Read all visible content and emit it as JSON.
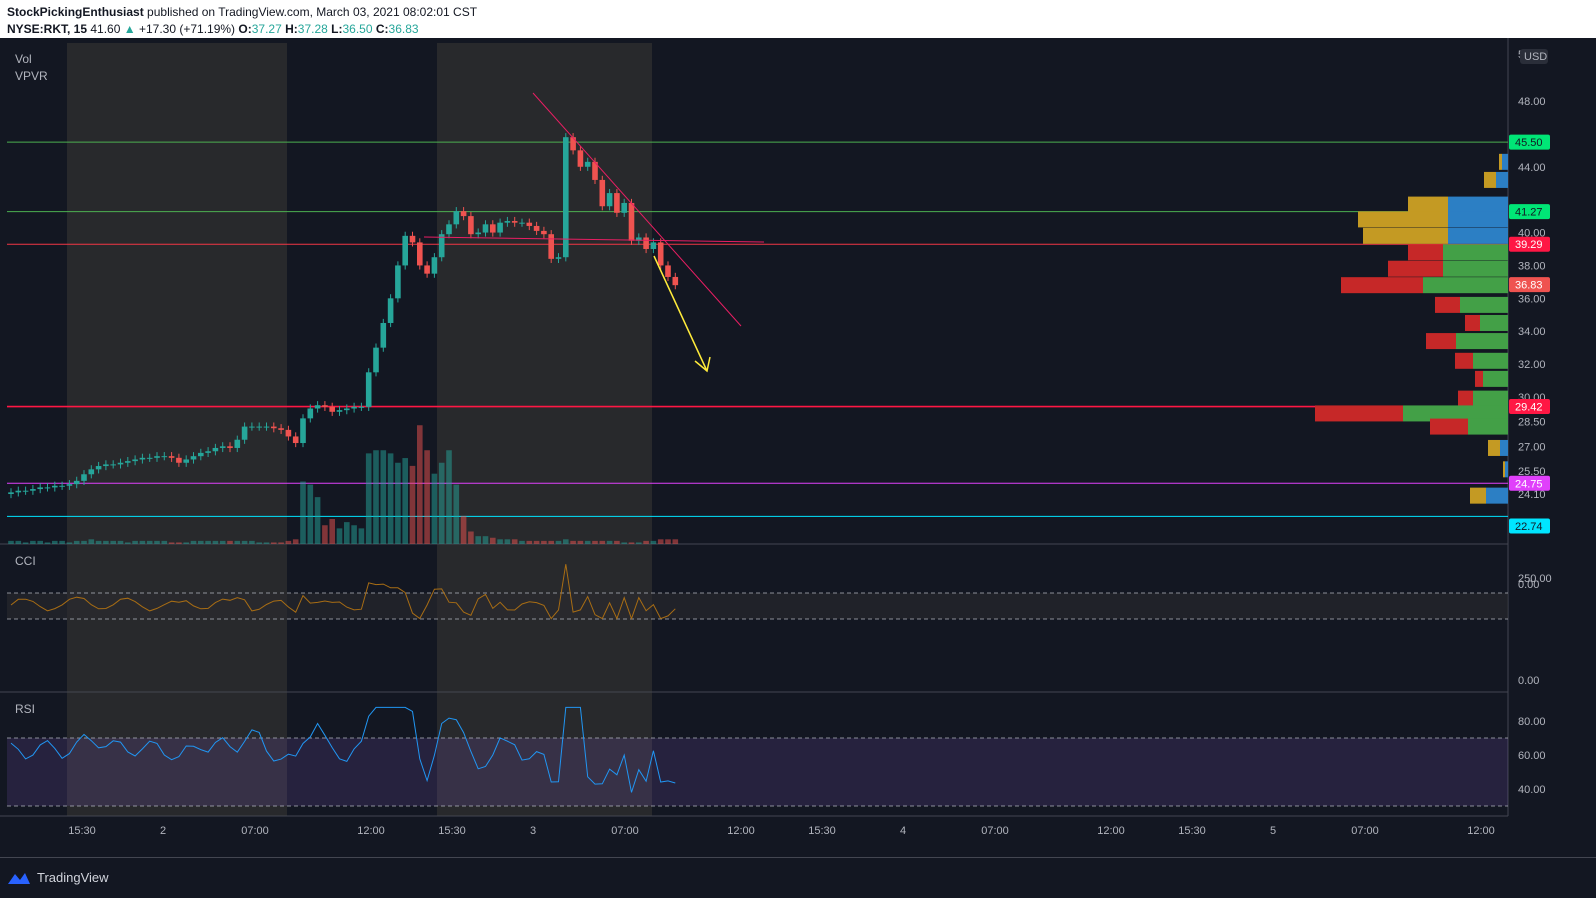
{
  "header": {
    "publisher": "StockPickingEnthusiast",
    "published_text": "published on TradingView.com, March 03, 2021 08:02:01 CST",
    "symbol": "NYSE:RKT, 15",
    "last": "41.60",
    "change": "+17.30 (+71.19%)",
    "o_label": "O:",
    "o_value": "37.27",
    "h_label": "H:",
    "h_value": "37.28",
    "l_label": "L:",
    "l_value": "36.50",
    "c_label": "C:",
    "c_value": "36.83"
  },
  "panels": {
    "main_labels": [
      "Vol",
      "VPVR"
    ],
    "cci_label": "CCI",
    "rsi_label": "RSI",
    "currency": "USD"
  },
  "price_axis": {
    "top_tick": "5",
    "ticks": [
      "48.00",
      "44.00",
      "40.00",
      "38.00",
      "36.00",
      "34.00",
      "32.00",
      "30.00",
      "28.50",
      "27.00",
      "25.50",
      "24.10"
    ]
  },
  "price_tags": [
    {
      "value": "45.50",
      "color": "#00e676",
      "text_color": "#131722"
    },
    {
      "value": "41.27",
      "color": "#00e676",
      "text_color": "#131722"
    },
    {
      "value": "39.29",
      "color": "#ff1744",
      "text_color": "#ffffff"
    },
    {
      "value": "36.83",
      "color": "#ef5350",
      "text_color": "#ffffff"
    },
    {
      "value": "29.42",
      "color": "#ff1744",
      "text_color": "#ffffff"
    },
    {
      "value": "24.75",
      "color": "#e040fb",
      "text_color": "#ffffff"
    },
    {
      "value": "22.74",
      "color": "#00e5ff",
      "text_color": "#131722"
    }
  ],
  "cci_axis": [
    "250.00",
    "0.00",
    "0.00"
  ],
  "rsi_axis": [
    "80.00",
    "60.00",
    "40.00"
  ],
  "time_axis": [
    "15:30",
    "2",
    "07:00",
    "12:00",
    "15:30",
    "3",
    "07:00",
    "12:00",
    "15:30",
    "4",
    "07:00",
    "12:00",
    "15:30",
    "5",
    "07:00",
    "12:00"
  ],
  "footer": {
    "brand": "TradingView"
  },
  "colors": {
    "up": "#26a69a",
    "down": "#ef5350",
    "session": "#3a3834",
    "background": "#131722"
  },
  "chart_data": {
    "type": "candlestick",
    "closes": [
      24.2,
      24.3,
      24.3,
      24.4,
      24.5,
      24.5,
      24.6,
      24.6,
      24.7,
      24.9,
      25.3,
      25.6,
      25.8,
      25.9,
      25.9,
      26.0,
      26.1,
      26.2,
      26.3,
      26.3,
      26.4,
      26.4,
      26.3,
      26.0,
      26.2,
      26.4,
      26.6,
      26.7,
      26.9,
      27.0,
      26.9,
      27.4,
      28.2,
      28.2,
      28.2,
      28.2,
      28.1,
      28.0,
      27.6,
      27.2,
      28.7,
      29.3,
      29.5,
      29.4,
      29.1,
      29.2,
      29.3,
      29.4,
      29.4,
      31.5,
      33.0,
      34.5,
      36.0,
      38.0,
      39.8,
      39.4,
      38.0,
      37.5,
      38.5,
      39.9,
      40.5,
      41.3,
      41.0,
      39.9,
      40.0,
      40.5,
      40.0,
      40.6,
      40.7,
      40.6,
      40.6,
      40.4,
      40.1,
      39.9,
      38.4,
      38.5,
      45.8,
      45.0,
      44.0,
      44.3,
      43.2,
      41.6,
      42.4,
      41.2,
      41.8,
      39.5,
      39.7,
      39.0,
      39.4,
      38.0,
      37.3,
      36.8
    ],
    "volume": [
      2,
      2,
      1,
      2,
      2,
      1,
      2,
      2,
      1,
      2,
      2,
      3,
      2,
      2,
      2,
      2,
      1,
      2,
      2,
      2,
      2,
      2,
      1,
      1,
      1,
      2,
      2,
      2,
      2,
      2,
      2,
      2,
      2,
      2,
      1,
      1,
      1,
      1,
      2,
      3,
      40,
      38,
      30,
      12,
      16,
      10,
      14,
      12,
      10,
      58,
      60,
      60,
      58,
      52,
      55,
      50,
      76,
      60,
      45,
      52,
      60,
      38,
      18,
      8,
      5,
      5,
      4,
      3,
      3,
      3,
      2,
      2,
      2,
      2,
      2,
      2,
      3,
      2,
      2,
      2,
      2,
      2,
      2,
      2,
      1,
      1,
      1,
      2,
      2,
      3,
      3,
      3
    ],
    "horizontal_levels": [
      45.5,
      41.27,
      39.29,
      29.42,
      24.75,
      22.74
    ],
    "cci_range": [
      -100,
      100
    ],
    "rsi_range": [
      30,
      70
    ]
  }
}
